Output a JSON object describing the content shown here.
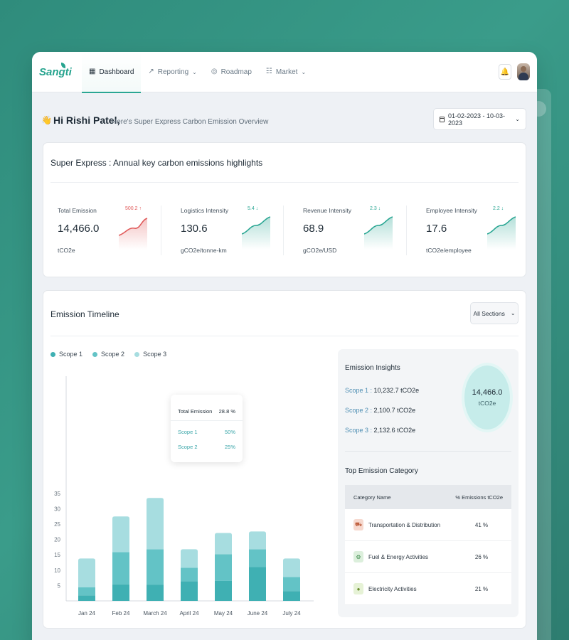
{
  "app": {
    "logo": "Sangti",
    "nav": [
      {
        "label": "Dashboard",
        "icon": "grid-icon",
        "active": true
      },
      {
        "label": "Reporting",
        "icon": "chart-icon",
        "dropdown": true
      },
      {
        "label": "Roadmap",
        "icon": "target-icon"
      },
      {
        "label": "Market",
        "icon": "market-icon",
        "dropdown": true
      }
    ]
  },
  "greeting": {
    "name": "Hi Rishi Patel,",
    "subtitle": "Here's Super Express Carbon Emission Overview",
    "date_range": "01-02-2023 - 10-03-2023"
  },
  "highlights": {
    "title": "Super Express : Annual key carbon emissions highlights",
    "kpis": [
      {
        "label": "Total Emission",
        "value": "14,466.0",
        "unit": "tCO2e",
        "delta": "500.2 ↑",
        "trend": "up",
        "color": "#e05a5a"
      },
      {
        "label": "Logistics Intensity",
        "value": "130.6",
        "unit": "gCO2e/tonne-km",
        "delta": "5.4 ↓",
        "trend": "down",
        "color": "#2aa693"
      },
      {
        "label": "Revenue Intensity",
        "value": "68.9",
        "unit": "gCO2e/USD",
        "delta": "2.3 ↓",
        "trend": "down",
        "color": "#2aa693"
      },
      {
        "label": "Employee Intensity",
        "value": "17.6",
        "unit": "tCO2e/employee",
        "delta": "2.2 ↓",
        "trend": "down",
        "color": "#2aa693"
      }
    ]
  },
  "timeline": {
    "title": "Emission Timeline",
    "filter": "All Sections",
    "legend": [
      {
        "label": "Scope 1",
        "color": "#3fb0b3"
      },
      {
        "label": "Scope 2",
        "color": "#63c3c6"
      },
      {
        "label": "Scope 3",
        "color": "#a7dde0"
      }
    ],
    "tooltip": {
      "total_label": "Total Emission",
      "total_value": "28.8 %",
      "rows": [
        {
          "label": "Scope 1",
          "value": "50%"
        },
        {
          "label": "Scope 2",
          "value": "25%"
        }
      ]
    }
  },
  "chart_data": {
    "type": "bar",
    "stacked": true,
    "categories": [
      "Jan 24",
      "Feb 24",
      "March 24",
      "April 24",
      "May 24",
      "June 24",
      "July 24"
    ],
    "series": [
      {
        "name": "Scope 1",
        "values": [
          1.8,
          5.4,
          5.3,
          6.4,
          6.5,
          11.0,
          3.2
        ]
      },
      {
        "name": "Scope 2",
        "values": [
          2.6,
          10.5,
          11.5,
          4.4,
          8.7,
          5.8,
          4.6
        ]
      },
      {
        "name": "Scope 3",
        "values": [
          9.4,
          11.6,
          16.7,
          6.0,
          6.9,
          5.8,
          6.0
        ]
      }
    ],
    "yticks": [
      5,
      10,
      15,
      20,
      25,
      30,
      35
    ],
    "ylim": [
      0,
      37
    ],
    "colors": [
      "#3fb0b3",
      "#63c3c6",
      "#a7dde0"
    ]
  },
  "insights": {
    "title": "Emission Insights",
    "scopes": [
      {
        "label": "Scope 1 :",
        "value": "10,232.7 tCO2e"
      },
      {
        "label": "Scope 2 :",
        "value": "2,100.7 tCO2e"
      },
      {
        "label": "Scope 3 :",
        "value": "2,132.6 tCO2e"
      }
    ],
    "total": "14,466.0",
    "total_unit": "tCO2e",
    "top_title": "Top Emission Category",
    "table_headers": [
      "Category Name",
      "% Emissions tCO2e"
    ],
    "categories": [
      {
        "name": "Transportation & Distribution",
        "pct": "41 %",
        "icon": "truck-icon",
        "bg": "#f6d9cf",
        "fg": "#c0603f"
      },
      {
        "name": "Fuel & Energy Activities",
        "pct": "26 %",
        "icon": "fuel-icon",
        "bg": "#dcefdc",
        "fg": "#3c8a4b"
      },
      {
        "name": "Electricity Activities",
        "pct": "21 %",
        "icon": "bulb-icon",
        "bg": "#e6f2d6",
        "fg": "#6a8f2f"
      }
    ]
  }
}
